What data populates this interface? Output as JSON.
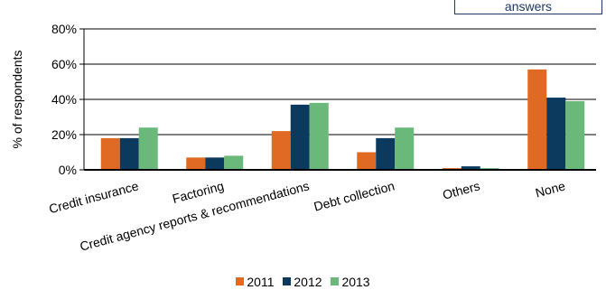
{
  "note": {
    "text": "answers"
  },
  "colors": {
    "2011": "#e06a24",
    "2012": "#0b3a5e",
    "2013": "#6ab87a"
  },
  "chart_data": {
    "type": "bar",
    "ylabel": "% of respondents",
    "ylim": [
      0,
      80
    ],
    "yticks": [
      "0%",
      "20%",
      "40%",
      "60%",
      "80%"
    ],
    "tick_values": [
      0,
      20,
      40,
      60,
      80
    ],
    "categories": [
      "Credit insurance",
      "Factoring",
      "Credit agency reports & recommendations",
      "Debt collection",
      "Others",
      "None"
    ],
    "series": [
      {
        "name": "2011",
        "color": "#e06a24",
        "values": [
          18,
          7,
          22,
          10,
          1,
          57
        ]
      },
      {
        "name": "2012",
        "color": "#0b3a5e",
        "values": [
          18,
          7,
          37,
          18,
          2,
          41
        ]
      },
      {
        "name": "2013",
        "color": "#6ab87a",
        "values": [
          24,
          8,
          38,
          24,
          1,
          39
        ]
      }
    ],
    "legend_position": "bottom",
    "grid": true
  }
}
